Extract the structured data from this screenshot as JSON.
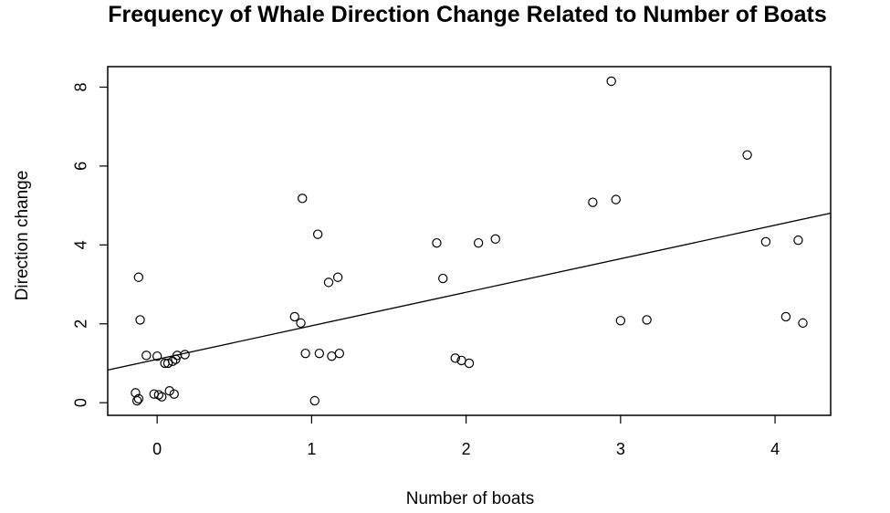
{
  "chart_data": {
    "type": "scatter",
    "title": "Frequency of Whale Direction Change Related to Number of Boats",
    "xlabel": "Number of boats",
    "ylabel": "Direction change",
    "xlim": [
      -0.32,
      4.36
    ],
    "ylim": [
      -0.32,
      8.52
    ],
    "xticks": [
      "0",
      "1",
      "2",
      "3",
      "4"
    ],
    "yticks": [
      "0",
      "2",
      "4",
      "6",
      "8"
    ],
    "grid": false,
    "marker": "open-circle",
    "point_color": "#000000",
    "fit_line": {
      "intercept": 1.1,
      "slope": 0.85,
      "color": "#000000"
    },
    "series": [
      {
        "points": [
          [
            -0.14,
            0.25
          ],
          [
            -0.13,
            0.05
          ],
          [
            -0.12,
            0.1
          ],
          [
            -0.12,
            3.18
          ],
          [
            -0.11,
            2.1
          ],
          [
            -0.07,
            1.2
          ],
          [
            -0.02,
            0.22
          ],
          [
            0.0,
            1.18
          ],
          [
            0.01,
            0.2
          ],
          [
            0.03,
            0.15
          ],
          [
            0.05,
            1.0
          ],
          [
            0.07,
            1.0
          ],
          [
            0.08,
            0.3
          ],
          [
            0.1,
            1.05
          ],
          [
            0.11,
            0.22
          ],
          [
            0.12,
            1.1
          ],
          [
            0.13,
            1.2
          ],
          [
            0.18,
            1.22
          ],
          [
            0.89,
            2.18
          ],
          [
            0.93,
            2.02
          ],
          [
            0.94,
            5.18
          ],
          [
            0.96,
            1.25
          ],
          [
            1.02,
            0.05
          ],
          [
            1.04,
            4.27
          ],
          [
            1.05,
            1.25
          ],
          [
            1.11,
            3.05
          ],
          [
            1.13,
            1.18
          ],
          [
            1.17,
            3.18
          ],
          [
            1.18,
            1.25
          ],
          [
            1.81,
            4.05
          ],
          [
            1.85,
            3.15
          ],
          [
            1.93,
            1.13
          ],
          [
            1.97,
            1.07
          ],
          [
            2.02,
            1.0
          ],
          [
            2.08,
            4.05
          ],
          [
            2.19,
            4.15
          ],
          [
            2.82,
            5.08
          ],
          [
            2.94,
            8.15
          ],
          [
            2.97,
            5.15
          ],
          [
            3.0,
            2.08
          ],
          [
            3.17,
            2.1
          ],
          [
            3.82,
            6.28
          ],
          [
            3.94,
            4.08
          ],
          [
            4.07,
            2.18
          ],
          [
            4.15,
            4.12
          ],
          [
            4.18,
            2.02
          ]
        ]
      }
    ]
  }
}
